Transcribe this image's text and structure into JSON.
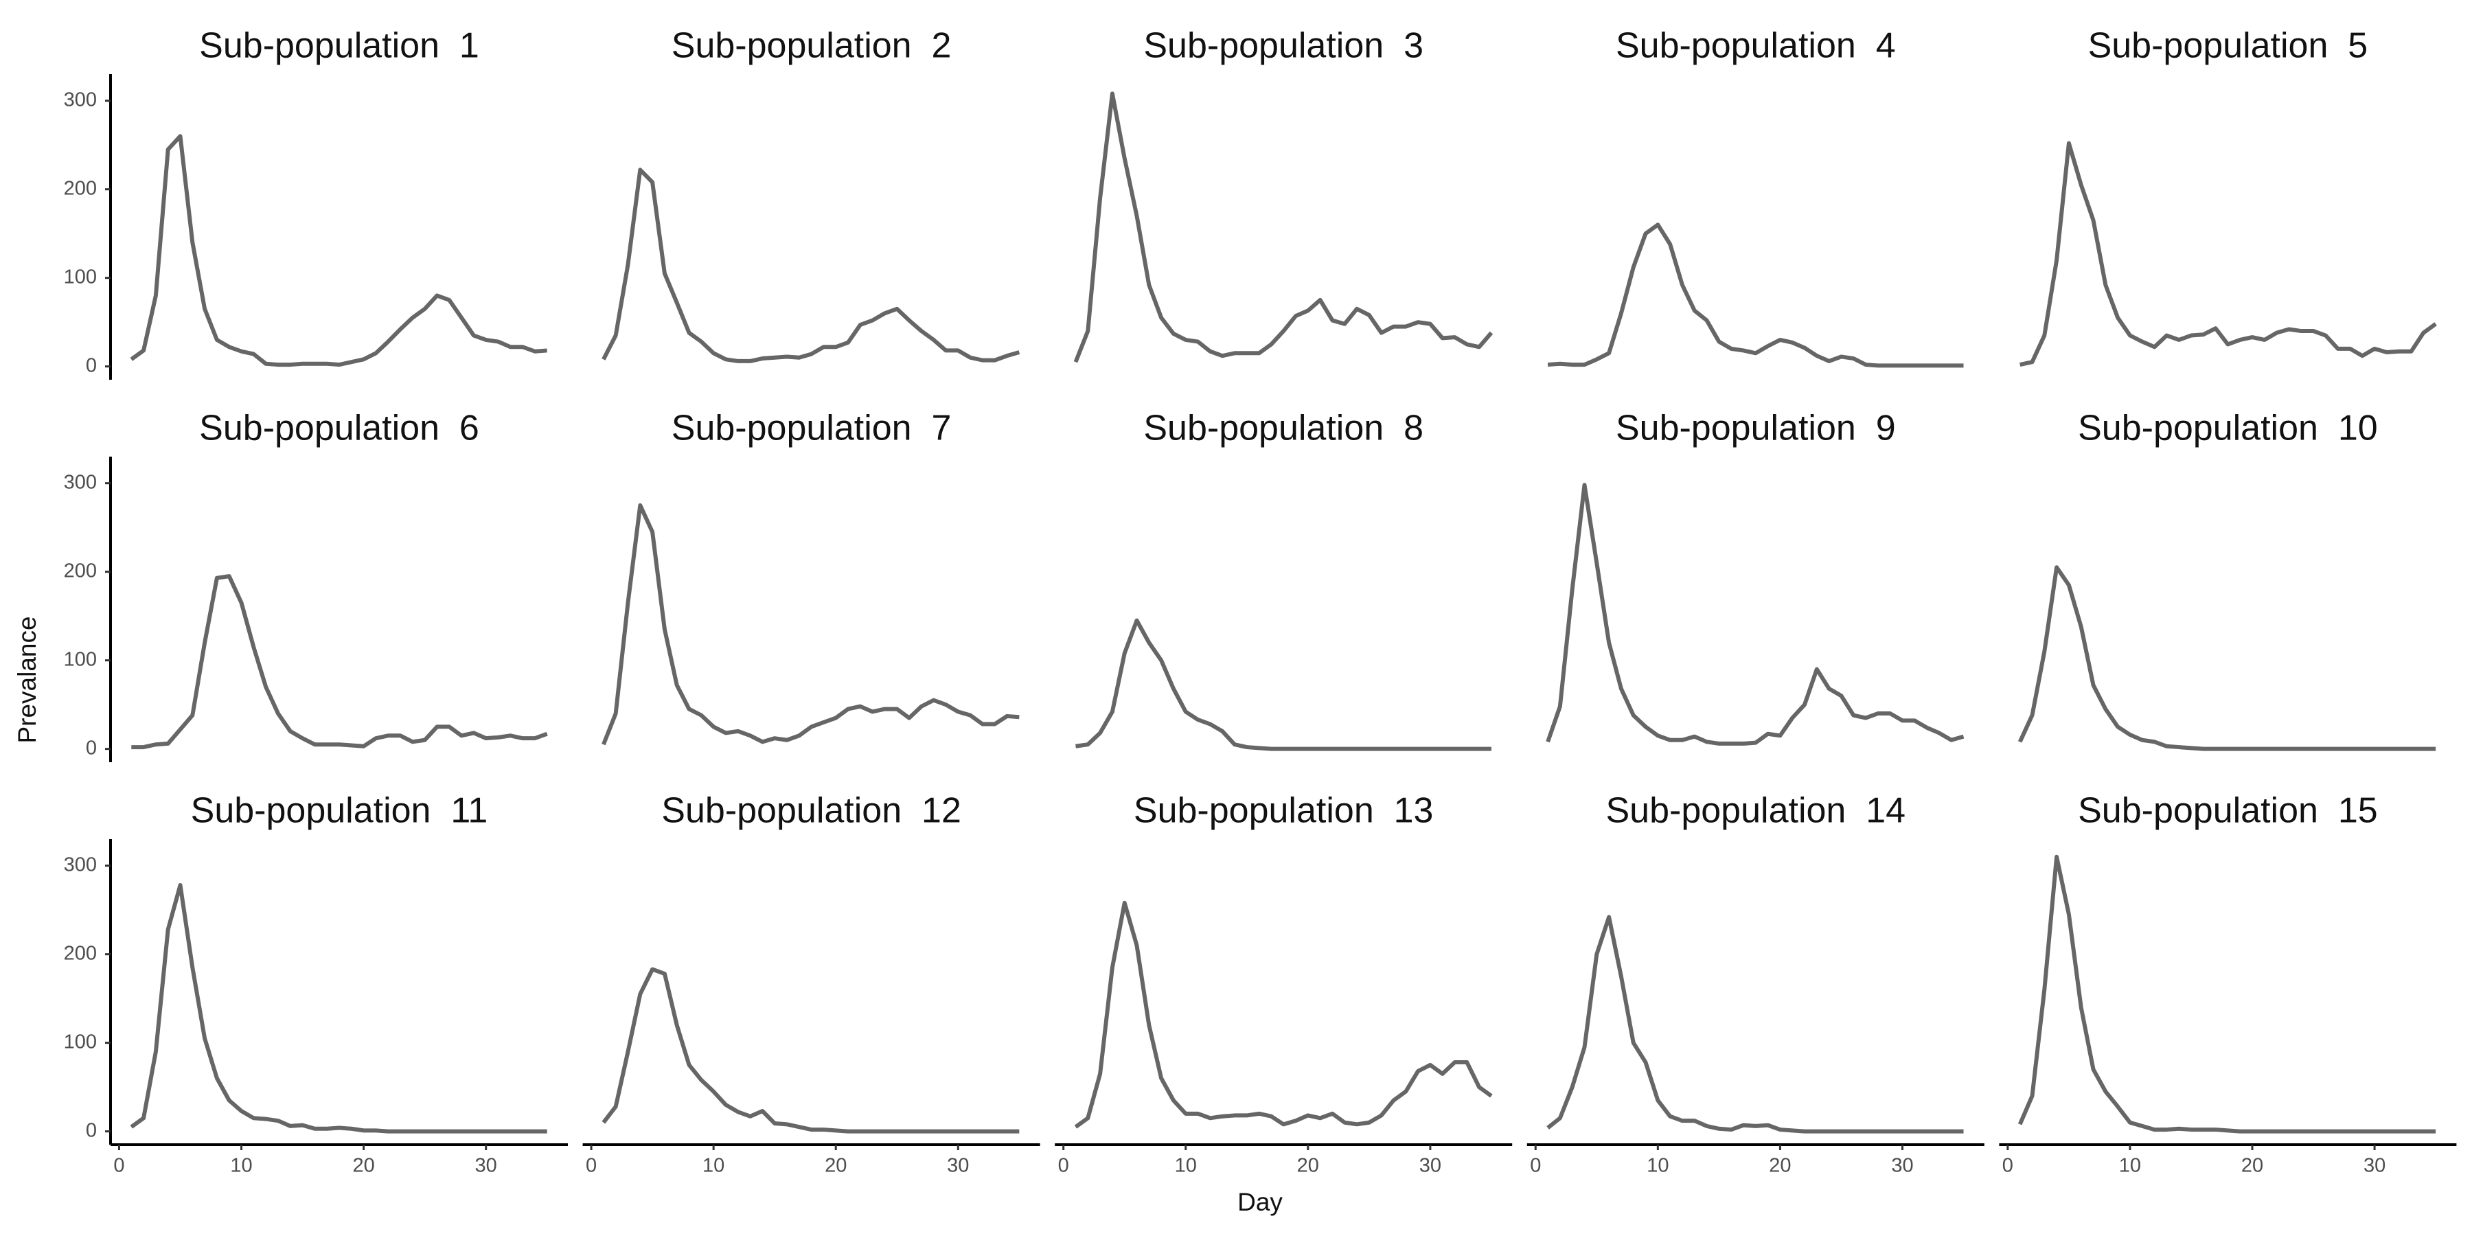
{
  "chart_data": {
    "type": "line",
    "x_label": "Day",
    "y_label": "Prevalance",
    "color": "#666666",
    "x": [
      1,
      2,
      3,
      4,
      5,
      6,
      7,
      8,
      9,
      10,
      11,
      12,
      13,
      14,
      15,
      16,
      17,
      18,
      19,
      20,
      21,
      22,
      23,
      24,
      25,
      26,
      27,
      28,
      29,
      30,
      31,
      32,
      33,
      34,
      35
    ],
    "xlim": [
      -0.7,
      36.7
    ],
    "ylim": [
      -15,
      330
    ],
    "xticks": [
      0,
      10,
      20,
      30
    ],
    "yticks": [
      0,
      100,
      200,
      300
    ],
    "series": [
      {
        "name": "Sub-population  1",
        "values": [
          8,
          18,
          80,
          245,
          260,
          140,
          65,
          30,
          22,
          17,
          14,
          3,
          2,
          2,
          3,
          3,
          3,
          2,
          5,
          8,
          15,
          28,
          42,
          55,
          65,
          80,
          75,
          55,
          35,
          30,
          28,
          22,
          22,
          17,
          18
        ]
      },
      {
        "name": "Sub-population  2",
        "values": [
          8,
          35,
          115,
          222,
          208,
          105,
          72,
          38,
          28,
          15,
          8,
          6,
          6,
          9,
          10,
          11,
          10,
          14,
          22,
          22,
          27,
          47,
          52,
          60,
          65,
          52,
          40,
          30,
          18,
          18,
          10,
          7,
          7,
          12,
          16
        ]
      },
      {
        "name": "Sub-population  3",
        "values": [
          5,
          40,
          190,
          308,
          235,
          170,
          92,
          55,
          37,
          30,
          28,
          17,
          12,
          15,
          15,
          15,
          25,
          40,
          57,
          63,
          75,
          52,
          48,
          65,
          58,
          38,
          45,
          45,
          50,
          48,
          32,
          33,
          25,
          22,
          38
        ]
      },
      {
        "name": "Sub-population  4",
        "values": [
          2,
          3,
          2,
          2,
          8,
          15,
          60,
          112,
          150,
          160,
          138,
          92,
          63,
          52,
          28,
          20,
          18,
          15,
          23,
          30,
          27,
          21,
          12,
          6,
          11,
          9,
          2,
          1,
          1,
          1,
          1,
          1,
          1,
          1,
          1
        ]
      },
      {
        "name": "Sub-population  5",
        "values": [
          2,
          5,
          35,
          120,
          252,
          205,
          165,
          92,
          55,
          35,
          28,
          22,
          35,
          30,
          35,
          36,
          43,
          25,
          30,
          33,
          30,
          38,
          42,
          40,
          40,
          35,
          20,
          20,
          12,
          20,
          16,
          17,
          17,
          38,
          48
        ]
      },
      {
        "name": "Sub-population  6",
        "values": [
          2,
          2,
          5,
          6,
          22,
          38,
          120,
          193,
          195,
          165,
          115,
          70,
          40,
          20,
          12,
          5,
          5,
          5,
          4,
          3,
          12,
          15,
          15,
          8,
          10,
          25,
          25,
          15,
          18,
          12,
          13,
          15,
          12,
          12,
          17
        ]
      },
      {
        "name": "Sub-population  7",
        "values": [
          5,
          40,
          165,
          275,
          245,
          135,
          72,
          45,
          38,
          25,
          18,
          20,
          15,
          8,
          12,
          10,
          15,
          25,
          30,
          35,
          45,
          48,
          42,
          45,
          45,
          35,
          48,
          55,
          50,
          42,
          38,
          28,
          28,
          37,
          36
        ]
      },
      {
        "name": "Sub-population  8",
        "values": [
          3,
          5,
          18,
          42,
          108,
          145,
          120,
          100,
          68,
          42,
          33,
          28,
          20,
          5,
          2,
          1,
          0,
          0,
          0,
          0,
          0,
          0,
          0,
          0,
          0,
          0,
          0,
          0,
          0,
          0,
          0,
          0,
          0,
          0,
          0
        ]
      },
      {
        "name": "Sub-population  9",
        "values": [
          8,
          48,
          180,
          298,
          210,
          120,
          68,
          38,
          25,
          15,
          10,
          10,
          14,
          8,
          6,
          6,
          6,
          7,
          17,
          15,
          35,
          50,
          90,
          68,
          60,
          38,
          35,
          40,
          40,
          32,
          32,
          24,
          18,
          10,
          14
        ]
      },
      {
        "name": "Sub-population  10",
        "values": [
          8,
          38,
          110,
          205,
          185,
          138,
          72,
          45,
          25,
          16,
          10,
          8,
          3,
          2,
          1,
          0,
          0,
          0,
          0,
          0,
          0,
          0,
          0,
          0,
          0,
          0,
          0,
          0,
          0,
          0,
          0,
          0,
          0,
          0,
          0
        ]
      },
      {
        "name": "Sub-population  11",
        "values": [
          5,
          15,
          90,
          228,
          278,
          185,
          105,
          60,
          35,
          23,
          15,
          14,
          12,
          6,
          7,
          3,
          3,
          4,
          3,
          1,
          1,
          0,
          0,
          0,
          0,
          0,
          0,
          0,
          0,
          0,
          0,
          0,
          0,
          0,
          0
        ]
      },
      {
        "name": "Sub-population  12",
        "values": [
          10,
          28,
          90,
          155,
          183,
          178,
          120,
          75,
          58,
          45,
          30,
          22,
          17,
          23,
          9,
          8,
          5,
          2,
          2,
          1,
          0,
          0,
          0,
          0,
          0,
          0,
          0,
          0,
          0,
          0,
          0,
          0,
          0,
          0,
          0
        ]
      },
      {
        "name": "Sub-population  13",
        "values": [
          5,
          15,
          65,
          185,
          258,
          210,
          120,
          60,
          35,
          20,
          20,
          15,
          17,
          18,
          18,
          20,
          17,
          8,
          12,
          18,
          15,
          20,
          10,
          8,
          10,
          18,
          35,
          45,
          68,
          75,
          65,
          78,
          78,
          50,
          40
        ]
      },
      {
        "name": "Sub-population  14",
        "values": [
          4,
          15,
          50,
          95,
          200,
          242,
          175,
          100,
          78,
          35,
          17,
          12,
          12,
          6,
          3,
          2,
          7,
          6,
          7,
          2,
          1,
          0,
          0,
          0,
          0,
          0,
          0,
          0,
          0,
          0,
          0,
          0,
          0,
          0,
          0
        ]
      },
      {
        "name": "Sub-population  15",
        "values": [
          8,
          40,
          160,
          310,
          245,
          140,
          70,
          45,
          28,
          10,
          6,
          2,
          2,
          3,
          2,
          2,
          2,
          1,
          0,
          0,
          0,
          0,
          0,
          0,
          0,
          0,
          0,
          0,
          0,
          0,
          0,
          0,
          0,
          0,
          0
        ]
      }
    ]
  }
}
